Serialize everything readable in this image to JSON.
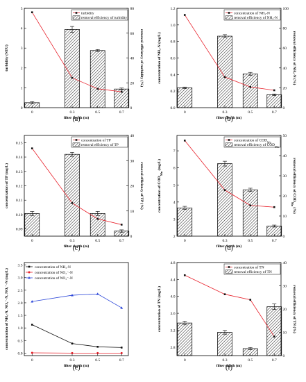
{
  "chart_data": [
    {
      "id": "a",
      "panel_label": "(a)",
      "type": "bar+line",
      "categories": [
        "0",
        "0.3",
        "0.5",
        "0.7"
      ],
      "xlabel": "filter depth (m)",
      "ylabel": "turbidity (NTU)",
      "ylabel_right": "removal efficiency of turbidity (%)",
      "yticks": [
        "0",
        "1",
        "2",
        "3",
        "4",
        "5"
      ],
      "ylim": [
        0,
        5
      ],
      "yticks_right": [
        "0",
        "20",
        "40",
        "60",
        "80"
      ],
      "ylim_right": [
        0,
        80
      ],
      "line": {
        "name": "turbidity",
        "values": [
          4.8,
          1.5,
          0.95,
          0.8
        ],
        "color": "#e8202a"
      },
      "bars": {
        "name": "removal efficiency of turbidity",
        "values": [
          4,
          63,
          46,
          15
        ],
        "err": [
          0.8,
          2.4,
          0.8,
          0.8
        ]
      },
      "legend_position": "top-right"
    },
    {
      "id": "b",
      "panel_label": "(b)",
      "type": "bar+line",
      "categories": [
        "0",
        "0.3",
        "0.5",
        "0.7"
      ],
      "xlabel": "filter depth (m)",
      "ylabel": "concentration of NH₃-N (mg/L)",
      "ylabel_right": "removal efficiency of NH₃-N (%)",
      "yticks": [
        "0.0",
        "0.2",
        "0.4",
        "0.6",
        "0.8",
        "1.0",
        "1.2"
      ],
      "ylim": [
        0,
        1.2
      ],
      "yticks_right": [
        "0",
        "20",
        "40",
        "60",
        "80",
        "100"
      ],
      "ylim_right": [
        0,
        100
      ],
      "line": {
        "name": "concentration of NH₃-N",
        "values": [
          1.12,
          0.37,
          0.25,
          0.21
        ],
        "color": "#e8202a"
      },
      "bars": {
        "name": "removal efficiency of NH₃-N",
        "values": [
          20,
          72,
          34,
          13
        ],
        "err": [
          0.8,
          1.5,
          1.5,
          0.8
        ]
      },
      "legend_position": "top-right"
    },
    {
      "id": "c",
      "panel_label": "(c)",
      "type": "bar+line",
      "categories": [
        "0",
        "0.3",
        "0.5",
        "0.7"
      ],
      "xlabel": "filter depth (m)",
      "ylabel": "concentration of TP (mg/L)",
      "ylabel_right": "removal efficiency of TP (%)",
      "yticks": [
        "0.09",
        "0.10",
        "0.11",
        "0.12",
        "0.13",
        "0.14",
        "0.15"
      ],
      "ylim": [
        0.085,
        0.155
      ],
      "yticks_right": [
        "0",
        "10",
        "20",
        "30",
        "40"
      ],
      "ylim_right": [
        0,
        40
      ],
      "line": {
        "name": "concentration of TP",
        "values": [
          0.146,
          0.108,
          0.097,
          0.093
        ],
        "color": "#e8202a"
      },
      "bars": {
        "name": "removal efficiency of TP",
        "values": [
          9,
          32.5,
          9,
          2
        ],
        "err": [
          0.8,
          0.8,
          0.8,
          0.5
        ]
      },
      "legend_position": "top-right"
    },
    {
      "id": "d",
      "panel_label": "(d)",
      "type": "bar+line",
      "categories": [
        "0",
        "0.3",
        "0.5",
        "0.7"
      ],
      "xlabel": "filter depth (m)",
      "ylabel": "concentration of COD_Mn (mg/L)",
      "ylabel_right": "removal efficiency of COD_Mn (%)",
      "yticks": [
        "2",
        "3",
        "4",
        "5",
        "6",
        "7"
      ],
      "ylim": [
        2,
        7.9
      ],
      "yticks_right": [
        "0",
        "10",
        "20",
        "30",
        "40",
        "50"
      ],
      "ylim_right": [
        0,
        50
      ],
      "line": {
        "name": "concentration of COD_Mn",
        "values": [
          7.6,
          4.7,
          3.8,
          3.7
        ],
        "color": "#e8202a"
      },
      "bars": {
        "name": "removal efficiency of COD_Mn",
        "values": [
          14,
          36,
          23,
          5
        ],
        "err": [
          0.8,
          1.2,
          0.8,
          0.5
        ]
      },
      "legend_position": "top-right"
    },
    {
      "id": "e",
      "panel_label": "(e)",
      "type": "line",
      "categories": [
        "0",
        "0.3",
        "0.5",
        "0.7"
      ],
      "xlabel": "filter depth (m)",
      "ylabel": "concentration of NH₃-N, NO₂⁻-N, NO₃⁻-N (mg/L)",
      "yticks": [
        "0.0",
        "0.5",
        "1.0",
        "1.5",
        "2.0",
        "2.5",
        "3.0",
        "3.5"
      ],
      "ylim": [
        -0.1,
        3.6
      ],
      "series": [
        {
          "name": "concentration of NH₃-N",
          "values": [
            1.13,
            0.38,
            0.25,
            0.22
          ],
          "color": "#111111"
        },
        {
          "name": "concentration of NO₂⁻-N",
          "values": [
            0.01,
            0.0,
            0.0,
            0.0
          ],
          "color": "#e8202a"
        },
        {
          "name": "concentration of NO₃⁻-N",
          "values": [
            2.05,
            2.3,
            2.35,
            1.8
          ],
          "color": "#2a45d8"
        }
      ],
      "legend_position": "top-left"
    },
    {
      "id": "f",
      "panel_label": "(f)",
      "type": "bar+line",
      "categories": [
        "0",
        "0.3",
        "0.5",
        "0.7"
      ],
      "xlabel": "filter depth (m)",
      "ylabel": "concentration of TN (mg/L)",
      "ylabel_right": "removal efficiency of TN (%)",
      "yticks": [
        "2.8",
        "3.2",
        "3.6",
        "4.0",
        "4.4",
        "4.8"
      ],
      "ylim": [
        2.6,
        4.8
      ],
      "yticks_right": [
        "0",
        "10",
        "20",
        "30",
        "40"
      ],
      "ylim_right": [
        0,
        40
      ],
      "line": {
        "name": "concentration of TN",
        "values": [
          4.5,
          4.05,
          3.92,
          3.05
        ],
        "color": "#e8202a"
      },
      "bars": {
        "name": "removal efficiency of TN",
        "values": [
          14,
          10,
          3,
          21
        ],
        "err": [
          0.8,
          0.8,
          0.5,
          1.2
        ]
      },
      "legend_position": "top-right"
    }
  ]
}
